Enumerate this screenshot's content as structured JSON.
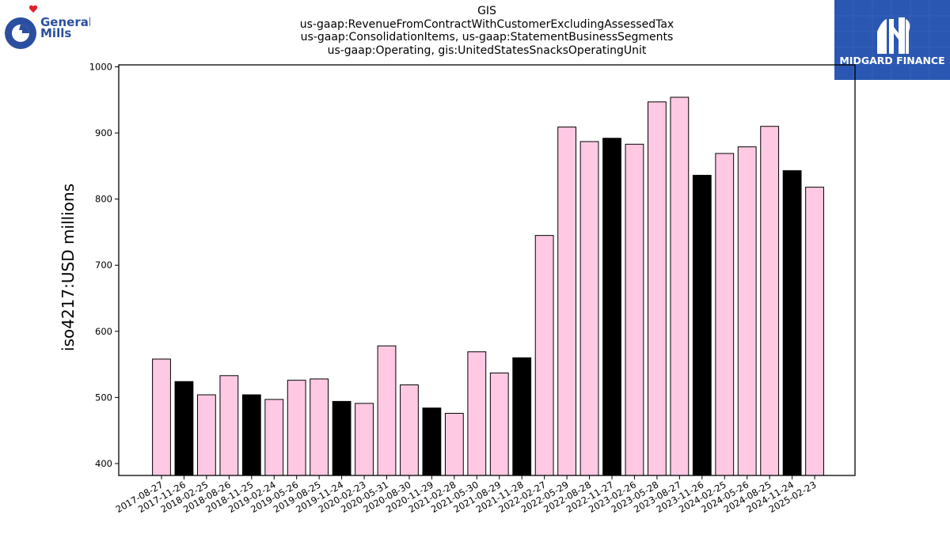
{
  "logos": {
    "left_brand": {
      "line1": "General",
      "line2": "Mills",
      "color": "#2a4fa0",
      "heart_color": "#e0202a"
    },
    "right_brand": {
      "text": "MIDGARD FINANCE",
      "bg": "#2a57b2"
    }
  },
  "chart_data": {
    "type": "bar",
    "title_lines": [
      "GIS",
      "us-gaap:RevenueFromContractWithCustomerExcludingAssessedTax",
      "us-gaap:ConsolidationItems, us-gaap:StatementBusinessSegments",
      "us-gaap:Operating, gis:UnitedStatesSnacksOperatingUnit"
    ],
    "ylabel": "iso4217:USD  millions",
    "xlabel": "",
    "ylim": [
      382,
      1003
    ],
    "yticks": [
      400,
      500,
      600,
      700,
      800,
      900,
      1000
    ],
    "grid": false,
    "colors": {
      "pink": "#ffc9e3",
      "black": "#000000"
    },
    "categories": [
      "2017-08-27",
      "2017-11-26",
      "2018-02-25",
      "2018-08-26",
      "2018-11-25",
      "2019-02-24",
      "2019-05-26",
      "2019-08-25",
      "2019-11-24",
      "2020-02-23",
      "2020-05-31",
      "2020-08-30",
      "2020-11-29",
      "2021-02-28",
      "2021-05-30",
      "2021-08-29",
      "2021-11-28",
      "2022-02-27",
      "2022-05-29",
      "2022-08-28",
      "2022-11-27",
      "2023-02-26",
      "2023-05-28",
      "2023-08-27",
      "2023-11-26",
      "2024-02-25",
      "2024-05-26",
      "2024-08-25",
      "2024-11-24",
      "2025-02-23"
    ],
    "values": [
      558,
      524,
      504,
      533,
      504,
      497,
      526,
      528,
      494,
      491,
      578,
      519,
      484,
      476,
      569,
      537,
      560,
      745,
      909,
      887,
      892,
      883,
      947,
      954,
      836,
      869,
      879,
      910,
      843,
      818
    ],
    "bar_colors": [
      "pink",
      "black",
      "pink",
      "pink",
      "black",
      "pink",
      "pink",
      "pink",
      "black",
      "pink",
      "pink",
      "pink",
      "black",
      "pink",
      "pink",
      "pink",
      "black",
      "pink",
      "pink",
      "pink",
      "black",
      "pink",
      "pink",
      "pink",
      "black",
      "pink",
      "pink",
      "pink",
      "black",
      "pink"
    ]
  }
}
